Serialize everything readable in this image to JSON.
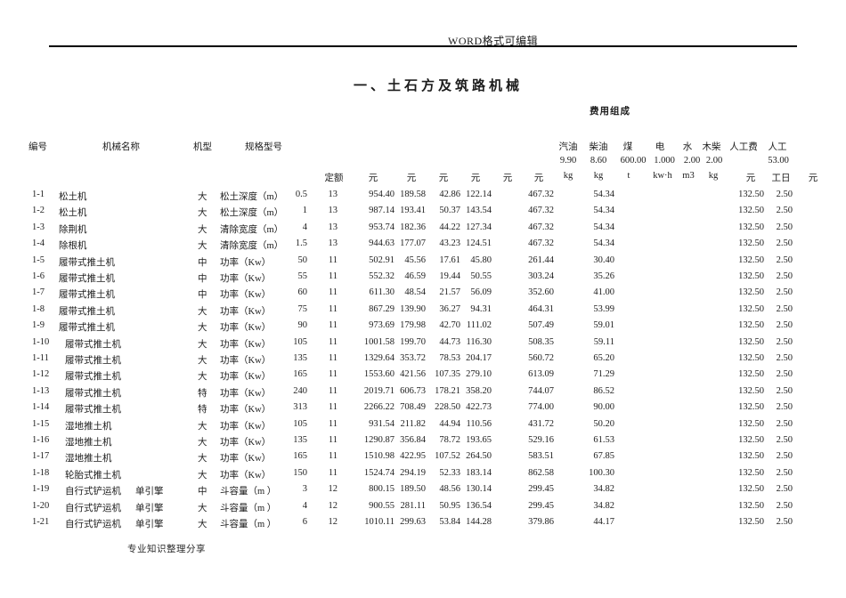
{
  "page": {
    "watermark": "WORD格式可编辑",
    "title": "一、土石方及筑路机械",
    "footer": "专业知识整理分享"
  },
  "table": {
    "group_header": "费用组成",
    "col_headers": {
      "id": "编号",
      "name": "机械名称",
      "model": "机型",
      "spec": "规格型号",
      "gasoline": "汽油",
      "diesel": "柴油",
      "coal": "煤",
      "electricity": "电",
      "water": "水",
      "firewood": "木柴",
      "labor_cost": "人工费",
      "labor": "人工"
    },
    "prices": {
      "gasoline": "9.90",
      "diesel": "8.60",
      "coal": "600.00",
      "electricity": "1.000",
      "water": "2.00",
      "firewood": "2.00",
      "labor": "53.00"
    },
    "units": [
      "定额",
      "元",
      "元",
      "元",
      "元",
      "元",
      "元",
      "kg",
      "kg",
      "t",
      "kw·h",
      "m3",
      "kg",
      "元",
      "工日",
      "元"
    ],
    "rows": [
      {
        "id": "1-1",
        "name": "松土机",
        "engine": "",
        "model": "大",
        "spec": "松土深度（m）",
        "specval": "0.5",
        "quota": "13",
        "c1": "954.40",
        "c2": "189.58",
        "c3": "42.86",
        "c4": "122.14",
        "c6": "467.32",
        "diesel": "54.34",
        "laborcost": "132.50",
        "labordays": "2.50"
      },
      {
        "id": "1-2",
        "name": "松土机",
        "engine": "",
        "model": "大",
        "spec": "松土深度（m）",
        "specval": "1",
        "quota": "13",
        "c1": "987.14",
        "c2": "193.41",
        "c3": "50.37",
        "c4": "143.54",
        "c6": "467.32",
        "diesel": "54.34",
        "laborcost": "132.50",
        "labordays": "2.50"
      },
      {
        "id": "1-3",
        "name": "除荆机",
        "engine": "",
        "model": "大",
        "spec": "清除宽度（m）",
        "specval": "4",
        "quota": "13",
        "c1": "953.74",
        "c2": "182.36",
        "c3": "44.22",
        "c4": "127.34",
        "c6": "467.32",
        "diesel": "54.34",
        "laborcost": "132.50",
        "labordays": "2.50"
      },
      {
        "id": "1-4",
        "name": "除根机",
        "engine": "",
        "model": "大",
        "spec": "清除宽度（m）",
        "specval": "1.5",
        "quota": "13",
        "c1": "944.63",
        "c2": "177.07",
        "c3": "43.23",
        "c4": "124.51",
        "c6": "467.32",
        "diesel": "54.34",
        "laborcost": "132.50",
        "labordays": "2.50"
      },
      {
        "id": "1-5",
        "name": "履带式推土机",
        "engine": "",
        "model": "中",
        "spec": "功率（Kw）",
        "specval": "50",
        "quota": "11",
        "c1": "502.91",
        "c2": "45.56",
        "c3": "17.61",
        "c4": "45.80",
        "c6": "261.44",
        "diesel": "30.40",
        "laborcost": "132.50",
        "labordays": "2.50"
      },
      {
        "id": "1-6",
        "name": "履带式推土机",
        "engine": "",
        "model": "中",
        "spec": "功率（Kw）",
        "specval": "55",
        "quota": "11",
        "c1": "552.32",
        "c2": "46.59",
        "c3": "19.44",
        "c4": "50.55",
        "c6": "303.24",
        "diesel": "35.26",
        "laborcost": "132.50",
        "labordays": "2.50"
      },
      {
        "id": "1-7",
        "name": "履带式推土机",
        "engine": "",
        "model": "中",
        "spec": "功率（Kw）",
        "specval": "60",
        "quota": "11",
        "c1": "611.30",
        "c2": "48.54",
        "c3": "21.57",
        "c4": "56.09",
        "c6": "352.60",
        "diesel": "41.00",
        "laborcost": "132.50",
        "labordays": "2.50"
      },
      {
        "id": "1-8",
        "name": "履带式推土机",
        "engine": "",
        "model": "大",
        "spec": "功率（Kw）",
        "specval": "75",
        "quota": "11",
        "c1": "867.29",
        "c2": "139.90",
        "c3": "36.27",
        "c4": "94.31",
        "c6": "464.31",
        "diesel": "53.99",
        "laborcost": "132.50",
        "labordays": "2.50"
      },
      {
        "id": "1-9",
        "name": "履带式推土机",
        "engine": "",
        "model": "大",
        "spec": "功率（Kw）",
        "specval": "90",
        "quota": "11",
        "c1": "973.69",
        "c2": "179.98",
        "c3": "42.70",
        "c4": "111.02",
        "c6": "507.49",
        "diesel": "59.01",
        "laborcost": "132.50",
        "labordays": "2.50"
      },
      {
        "id": "1-10",
        "name": "履带式推土机",
        "engine": "",
        "model": "大",
        "spec": "功率（Kw）",
        "specval": "105",
        "quota": "11",
        "c1": "1001.58",
        "c2": "199.70",
        "c3": "44.73",
        "c4": "116.30",
        "c6": "508.35",
        "diesel": "59.11",
        "laborcost": "132.50",
        "labordays": "2.50"
      },
      {
        "id": "1-11",
        "name": "履带式推土机",
        "engine": "",
        "model": "大",
        "spec": "功率（Kw）",
        "specval": "135",
        "quota": "11",
        "c1": "1329.64",
        "c2": "353.72",
        "c3": "78.53",
        "c4": "204.17",
        "c6": "560.72",
        "diesel": "65.20",
        "laborcost": "132.50",
        "labordays": "2.50"
      },
      {
        "id": "1-12",
        "name": "履带式推土机",
        "engine": "",
        "model": "大",
        "spec": "功率（Kw）",
        "specval": "165",
        "quota": "11",
        "c1": "1553.60",
        "c2": "421.56",
        "c3": "107.35",
        "c4": "279.10",
        "c6": "613.09",
        "diesel": "71.29",
        "laborcost": "132.50",
        "labordays": "2.50"
      },
      {
        "id": "1-13",
        "name": "履带式推土机",
        "engine": "",
        "model": "特",
        "spec": "功率（Kw）",
        "specval": "240",
        "quota": "11",
        "c1": "2019.71",
        "c2": "606.73",
        "c3": "178.21",
        "c4": "358.20",
        "c6": "744.07",
        "diesel": "86.52",
        "laborcost": "132.50",
        "labordays": "2.50"
      },
      {
        "id": "1-14",
        "name": "履带式推土机",
        "engine": "",
        "model": "特",
        "spec": "功率（Kw）",
        "specval": "313",
        "quota": "11",
        "c1": "2266.22",
        "c2": "708.49",
        "c3": "228.50",
        "c4": "422.73",
        "c6": "774.00",
        "diesel": "90.00",
        "laborcost": "132.50",
        "labordays": "2.50"
      },
      {
        "id": "1-15",
        "name": "湿地推土机",
        "engine": "",
        "model": "大",
        "spec": "功率（Kw）",
        "specval": "105",
        "quota": "11",
        "c1": "931.54",
        "c2": "211.82",
        "c3": "44.94",
        "c4": "110.56",
        "c6": "431.72",
        "diesel": "50.20",
        "laborcost": "132.50",
        "labordays": "2.50"
      },
      {
        "id": "1-16",
        "name": "湿地推土机",
        "engine": "",
        "model": "大",
        "spec": "功率（Kw）",
        "specval": "135",
        "quota": "11",
        "c1": "1290.87",
        "c2": "356.84",
        "c3": "78.72",
        "c4": "193.65",
        "c6": "529.16",
        "diesel": "61.53",
        "laborcost": "132.50",
        "labordays": "2.50"
      },
      {
        "id": "1-17",
        "name": "湿地推土机",
        "engine": "",
        "model": "大",
        "spec": "功率（Kw）",
        "specval": "165",
        "quota": "11",
        "c1": "1510.98",
        "c2": "422.95",
        "c3": "107.52",
        "c4": "264.50",
        "c6": "583.51",
        "diesel": "67.85",
        "laborcost": "132.50",
        "labordays": "2.50"
      },
      {
        "id": "1-18",
        "name": "轮胎式推土机",
        "engine": "",
        "model": "大",
        "spec": "功率（Kw）",
        "specval": "150",
        "quota": "11",
        "c1": "1524.74",
        "c2": "294.19",
        "c3": "52.33",
        "c4": "183.14",
        "c6": "862.58",
        "diesel": "100.30",
        "laborcost": "132.50",
        "labordays": "2.50"
      },
      {
        "id": "1-19",
        "name": "自行式铲运机",
        "engine": "单引擎",
        "model": "中",
        "spec": "斗容量（m ）",
        "specval": "3",
        "quota": "12",
        "c1": "800.15",
        "c2": "189.50",
        "c3": "48.56",
        "c4": "130.14",
        "c6": "299.45",
        "diesel": "34.82",
        "laborcost": "132.50",
        "labordays": "2.50"
      },
      {
        "id": "1-20",
        "name": "自行式铲运机",
        "engine": "单引擎",
        "model": "大",
        "spec": "斗容量（m ）",
        "specval": "4",
        "quota": "12",
        "c1": "900.55",
        "c2": "281.11",
        "c3": "50.95",
        "c4": "136.54",
        "c6": "299.45",
        "diesel": "34.82",
        "laborcost": "132.50",
        "labordays": "2.50"
      },
      {
        "id": "1-21",
        "name": "自行式铲运机",
        "engine": "单引擎",
        "model": "大",
        "spec": "斗容量（m ）",
        "specval": "6",
        "quota": "12",
        "c1": "1010.11",
        "c2": "299.63",
        "c3": "53.84",
        "c4": "144.28",
        "c6": "379.86",
        "diesel": "44.17",
        "laborcost": "132.50",
        "labordays": "2.50"
      }
    ]
  }
}
